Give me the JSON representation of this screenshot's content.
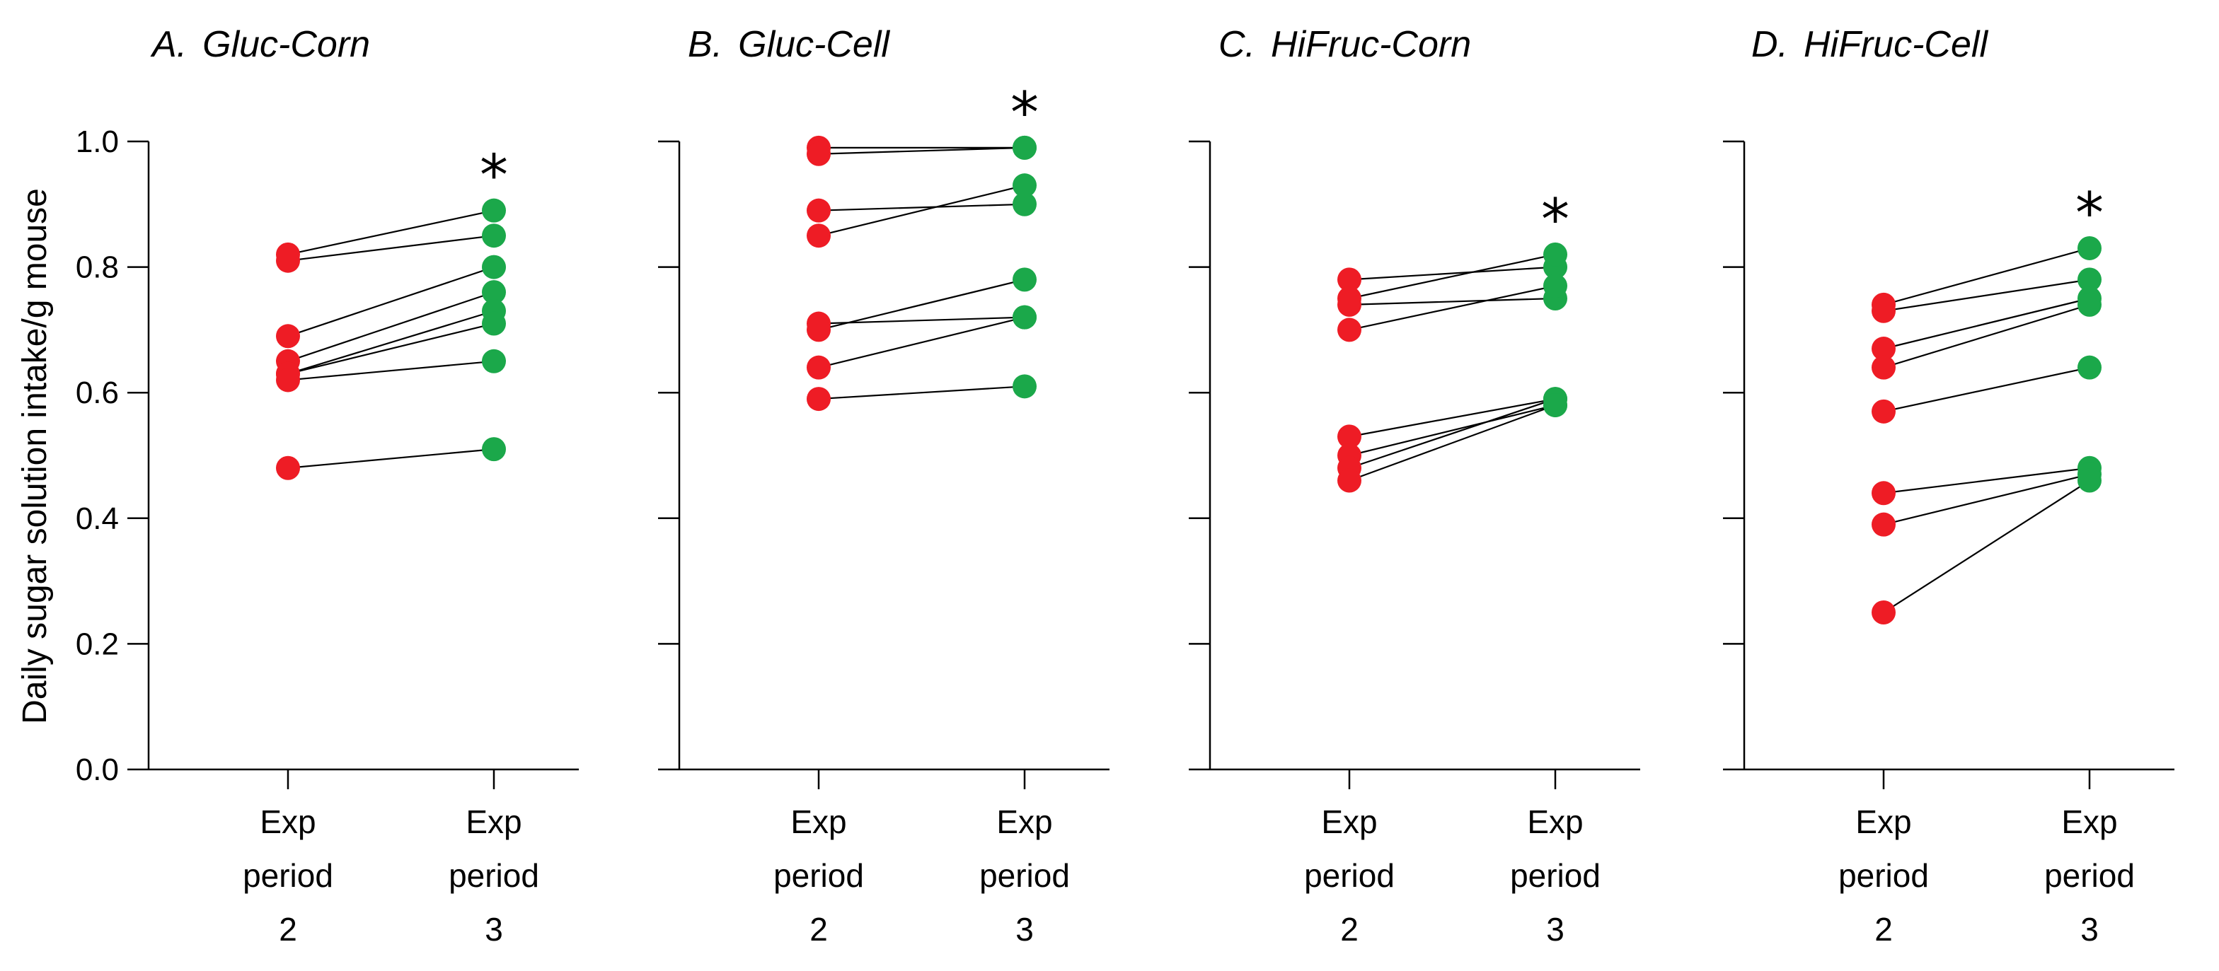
{
  "colors": {
    "period2": "#ee1c25",
    "period3": "#1ba84a",
    "line": "#000000"
  },
  "ylabel": "Daily sugar solution intake/g mouse",
  "chart_data": [
    {
      "type": "scatter",
      "title": "A. Gluc-Corn",
      "title_letter": "A.",
      "title_name": "Gluc-Corn",
      "categories": [
        [
          "Exp",
          "period",
          "2"
        ],
        [
          "Exp",
          "period",
          "3"
        ]
      ],
      "ylim": [
        0.0,
        1.0
      ],
      "yticks": [
        "0.0",
        "0.2",
        "0.4",
        "0.6",
        "0.8",
        "1.0"
      ],
      "annotation": "*",
      "pairs": [
        [
          0.82,
          0.89
        ],
        [
          0.81,
          0.85
        ],
        [
          0.69,
          0.8
        ],
        [
          0.65,
          0.76
        ],
        [
          0.63,
          0.73
        ],
        [
          0.63,
          0.71
        ],
        [
          0.62,
          0.65
        ],
        [
          0.48,
          0.51
        ]
      ]
    },
    {
      "type": "scatter",
      "title": "B. Gluc-Cell",
      "title_letter": "B.",
      "title_name": "Gluc-Cell",
      "categories": [
        [
          "Exp",
          "period",
          "2"
        ],
        [
          "Exp",
          "period",
          "3"
        ]
      ],
      "ylim": [
        0.0,
        1.0
      ],
      "yticks": [
        "0.0",
        "0.2",
        "0.4",
        "0.6",
        "0.8",
        "1.0"
      ],
      "annotation": "*",
      "pairs": [
        [
          0.99,
          0.99
        ],
        [
          0.98,
          0.99
        ],
        [
          0.89,
          0.9
        ],
        [
          0.85,
          0.93
        ],
        [
          0.71,
          0.72
        ],
        [
          0.7,
          0.78
        ],
        [
          0.64,
          0.72
        ],
        [
          0.59,
          0.61
        ]
      ]
    },
    {
      "type": "scatter",
      "title": "C. HiFruc-Corn",
      "title_letter": "C.",
      "title_name": "HiFruc-Corn",
      "categories": [
        [
          "Exp",
          "period",
          "2"
        ],
        [
          "Exp",
          "period",
          "3"
        ]
      ],
      "ylim": [
        0.0,
        1.0
      ],
      "yticks": [
        "0.0",
        "0.2",
        "0.4",
        "0.6",
        "0.8",
        "1.0"
      ],
      "annotation": "*",
      "pairs": [
        [
          0.78,
          0.8
        ],
        [
          0.75,
          0.82
        ],
        [
          0.74,
          0.75
        ],
        [
          0.7,
          0.77
        ],
        [
          0.53,
          0.59
        ],
        [
          0.5,
          0.58
        ],
        [
          0.48,
          0.59
        ],
        [
          0.46,
          0.58
        ]
      ]
    },
    {
      "type": "scatter",
      "title": "D. HiFruc-Cell",
      "title_letter": "D.",
      "title_name": "HiFruc-Cell",
      "categories": [
        [
          "Exp",
          "period",
          "2"
        ],
        [
          "Exp",
          "period",
          "3"
        ]
      ],
      "ylim": [
        0.0,
        1.0
      ],
      "yticks": [
        "0.0",
        "0.2",
        "0.4",
        "0.6",
        "0.8",
        "1.0"
      ],
      "annotation": "*",
      "pairs": [
        [
          0.74,
          0.83
        ],
        [
          0.73,
          0.78
        ],
        [
          0.67,
          0.75
        ],
        [
          0.64,
          0.74
        ],
        [
          0.57,
          0.64
        ],
        [
          0.44,
          0.48
        ],
        [
          0.39,
          0.47
        ],
        [
          0.25,
          0.46
        ]
      ]
    }
  ]
}
